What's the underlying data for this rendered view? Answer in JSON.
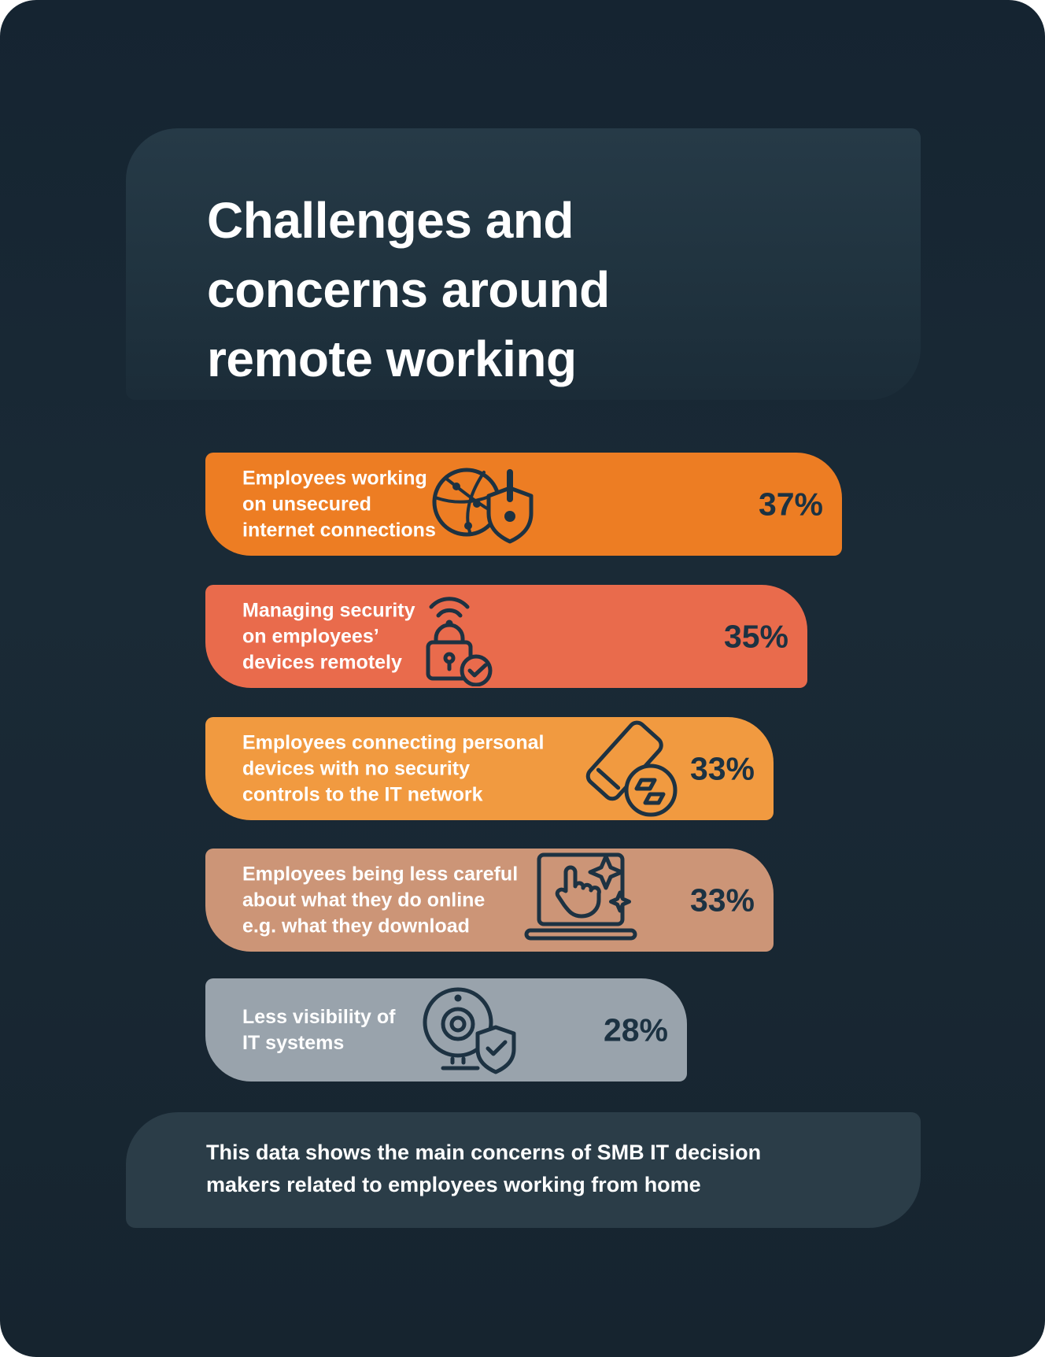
{
  "page": {
    "title": {
      "lines": [
        "Challenges and",
        "concerns around",
        "remote working"
      ]
    },
    "footer": {
      "lines": [
        "This data shows the main concerns of SMB IT decision",
        "makers related to employees working from home"
      ]
    }
  },
  "bars": [
    {
      "lines": [
        "Employees working",
        "on unsecured",
        "internet connections"
      ],
      "pct": 37,
      "value_label": "37%",
      "color": "#ed7d23",
      "icon": "globe-alert-shield-icon"
    },
    {
      "lines": [
        "Managing security",
        "on employees’",
        "devices remotely"
      ],
      "pct": 35,
      "value_label": "35%",
      "color": "#e96b4c",
      "icon": "wifi-padlock-check-icon"
    },
    {
      "lines": [
        "Employees connecting personal",
        "devices with no security",
        "controls to the IT network"
      ],
      "pct": 33,
      "value_label": "33%",
      "color": "#f19a40",
      "icon": "phone-connect-circle-icon"
    },
    {
      "lines": [
        "Employees being less careful",
        "about what they do online",
        "e.g. what they download"
      ],
      "pct": 33,
      "value_label": "33%",
      "color": "#cc9577",
      "icon": "laptop-tap-sparkle-icon"
    },
    {
      "lines": [
        "Less visibility of",
        "IT systems"
      ],
      "pct": 28,
      "value_label": "28%",
      "color": "#99a3ac",
      "icon": "webcam-shield-check-icon"
    }
  ],
  "colors": {
    "background": "#16242f",
    "title_panel": "#243845",
    "footer_panel": "#2b3d48",
    "ink": "#1d3242",
    "text_light": "#ffffff"
  },
  "chart_data": {
    "type": "bar",
    "orientation": "horizontal",
    "title": "Challenges and concerns around remote working",
    "categories": [
      "Employees working on unsecured internet connections",
      "Managing security on employees’ devices remotely",
      "Employees connecting personal devices with no security controls to the IT network",
      "Employees being less careful about what they do online e.g. what they download",
      "Less visibility of IT systems"
    ],
    "values": [
      37,
      35,
      33,
      33,
      28
    ],
    "value_labels": [
      "37%",
      "35%",
      "33%",
      "33%",
      "28%"
    ],
    "unit": "%",
    "bar_colors": [
      "#ed7d23",
      "#e96b4c",
      "#f19a40",
      "#cc9577",
      "#99a3ac"
    ],
    "xlim": [
      0,
      40
    ],
    "grid": false,
    "legend": false,
    "caption": "This data shows the main concerns of SMB IT decision makers related to employees working from home"
  }
}
